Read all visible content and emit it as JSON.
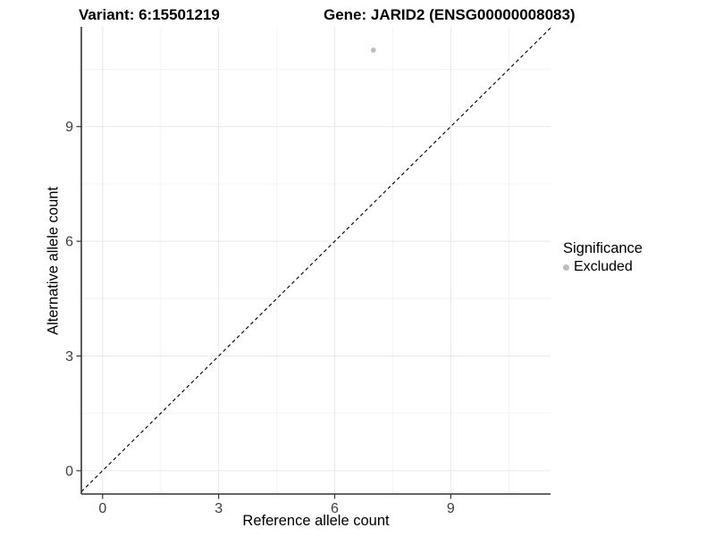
{
  "chart_data": {
    "type": "scatter",
    "title_left": "Variant: 6:15501219",
    "title_right": "Gene: JARID2 (ENSG00000008083)",
    "xlabel": "Reference allele count",
    "ylabel": "Alternative allele count",
    "xlim": [
      -0.55,
      11.58
    ],
    "ylim": [
      -0.61,
      11.61
    ],
    "x_ticks": [
      0,
      3,
      6,
      9
    ],
    "y_ticks": [
      0,
      3,
      6,
      9
    ],
    "x_minor_ticks": [
      1.5,
      4.5,
      7.5,
      10.5
    ],
    "y_minor_ticks": [
      1.5,
      4.5,
      7.5,
      10.5
    ],
    "grid": "major-and-minor",
    "reference_line": {
      "kind": "identity",
      "slope": 1,
      "intercept": 0,
      "style": "dashed",
      "color": "#000000"
    },
    "points": [
      {
        "x": 7,
        "y": 11,
        "series": "Excluded"
      }
    ],
    "legend": {
      "title": "Significance",
      "position": "right",
      "items": [
        {
          "label": "Excluded",
          "color": "#bdbdbd",
          "marker": "circle"
        }
      ]
    }
  },
  "colors": {
    "background": "#ffffff",
    "point": "#bdbdbd",
    "grid_major": "#e8e8e8",
    "grid_minor": "#f4f4f4",
    "axis_line": "#333333",
    "tick_mark": "#333333",
    "tick_label": "#404040",
    "text": "#000000"
  }
}
